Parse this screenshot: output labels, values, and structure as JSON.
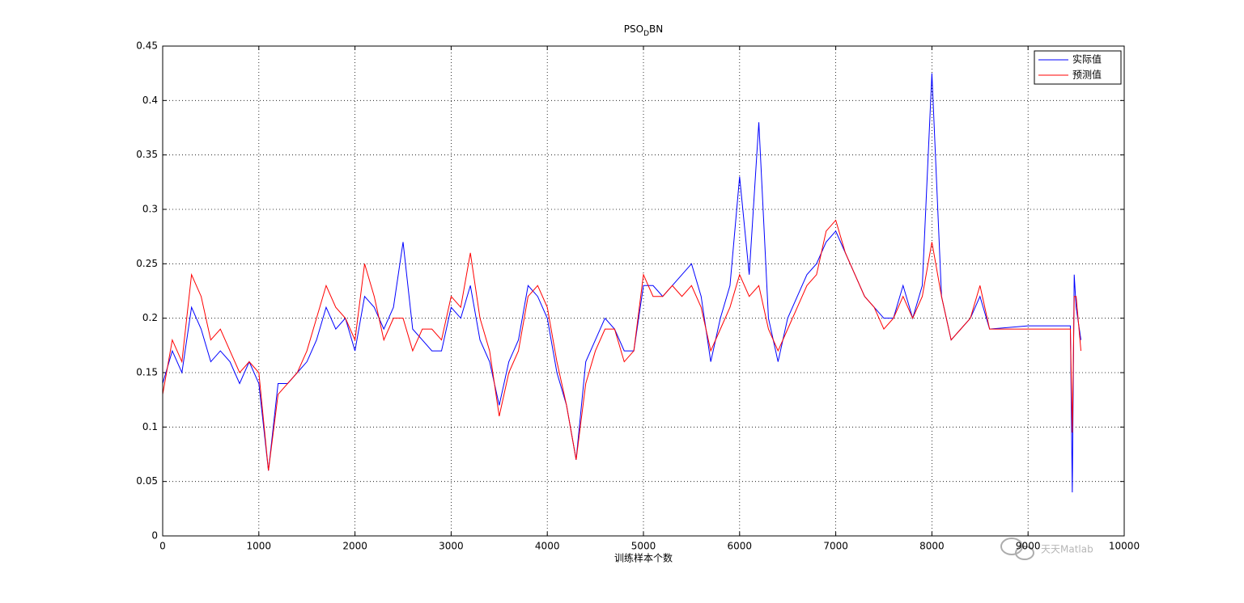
{
  "chart_data": {
    "type": "line",
    "title": "PSO_DBN",
    "x_label": "训练样本个数",
    "watermark": "天天Matlab",
    "x": [
      0,
      100,
      200,
      300,
      400,
      500,
      600,
      700,
      800,
      900,
      1000,
      1100,
      1200,
      1300,
      1400,
      1500,
      1600,
      1700,
      1800,
      1900,
      2000,
      2100,
      2200,
      2300,
      2400,
      2500,
      2600,
      2700,
      2800,
      2900,
      3000,
      3100,
      3200,
      3300,
      3400,
      3500,
      3600,
      3700,
      3800,
      3900,
      4000,
      4100,
      4200,
      4300,
      4400,
      4500,
      4600,
      4700,
      4800,
      4900,
      5000,
      5100,
      5200,
      5300,
      5400,
      5500,
      5600,
      5700,
      5800,
      5900,
      6000,
      6100,
      6200,
      6300,
      6400,
      6500,
      6600,
      6700,
      6800,
      6900,
      7000,
      7100,
      7200,
      7300,
      7400,
      7500,
      7600,
      7700,
      7800,
      7900,
      8000,
      8100,
      8200,
      8300,
      8400,
      8500,
      8600,
      9000,
      9440,
      9460,
      9480,
      9500,
      9550
    ],
    "series": [
      {
        "name": "实际值",
        "color": "#0000ff",
        "values": [
          0.14,
          0.17,
          0.15,
          0.21,
          0.19,
          0.16,
          0.17,
          0.16,
          0.14,
          0.16,
          0.14,
          0.06,
          0.14,
          0.14,
          0.15,
          0.16,
          0.18,
          0.21,
          0.19,
          0.2,
          0.17,
          0.22,
          0.21,
          0.19,
          0.21,
          0.27,
          0.19,
          0.18,
          0.17,
          0.17,
          0.21,
          0.2,
          0.23,
          0.18,
          0.16,
          0.12,
          0.16,
          0.18,
          0.23,
          0.22,
          0.2,
          0.15,
          0.12,
          0.07,
          0.16,
          0.18,
          0.2,
          0.19,
          0.17,
          0.17,
          0.23,
          0.23,
          0.22,
          0.23,
          0.24,
          0.25,
          0.22,
          0.16,
          0.2,
          0.23,
          0.33,
          0.24,
          0.38,
          0.2,
          0.16,
          0.2,
          0.22,
          0.24,
          0.25,
          0.27,
          0.28,
          0.26,
          0.24,
          0.22,
          0.21,
          0.2,
          0.2,
          0.23,
          0.2,
          0.23,
          0.425,
          0.22,
          0.18,
          0.19,
          0.2,
          0.22,
          0.19,
          0.193,
          0.193,
          0.04,
          0.24,
          0.21,
          0.18
        ]
      },
      {
        "name": "预测值",
        "color": "#ff0000",
        "values": [
          0.13,
          0.18,
          0.16,
          0.24,
          0.22,
          0.18,
          0.19,
          0.17,
          0.15,
          0.16,
          0.15,
          0.06,
          0.13,
          0.14,
          0.15,
          0.17,
          0.2,
          0.23,
          0.21,
          0.2,
          0.18,
          0.25,
          0.22,
          0.18,
          0.2,
          0.2,
          0.17,
          0.19,
          0.19,
          0.18,
          0.22,
          0.21,
          0.26,
          0.2,
          0.17,
          0.11,
          0.15,
          0.17,
          0.22,
          0.23,
          0.21,
          0.16,
          0.12,
          0.07,
          0.14,
          0.17,
          0.19,
          0.19,
          0.16,
          0.17,
          0.24,
          0.22,
          0.22,
          0.23,
          0.22,
          0.23,
          0.21,
          0.17,
          0.19,
          0.21,
          0.24,
          0.22,
          0.23,
          0.19,
          0.17,
          0.19,
          0.21,
          0.23,
          0.24,
          0.28,
          0.29,
          0.26,
          0.24,
          0.22,
          0.21,
          0.19,
          0.2,
          0.22,
          0.2,
          0.22,
          0.27,
          0.22,
          0.18,
          0.19,
          0.2,
          0.23,
          0.19,
          0.19,
          0.19,
          0.095,
          0.22,
          0.22,
          0.17
        ]
      }
    ],
    "xlim": [
      0,
      10000
    ],
    "xticks": [
      0,
      1000,
      2000,
      3000,
      4000,
      5000,
      6000,
      7000,
      8000,
      9000,
      10000
    ],
    "ylim": [
      0,
      0.45
    ],
    "yticks": [
      0,
      0.05,
      0.1,
      0.15,
      0.2,
      0.25,
      0.3,
      0.35,
      0.4,
      0.45
    ],
    "grid": true,
    "legend": "upper right"
  }
}
